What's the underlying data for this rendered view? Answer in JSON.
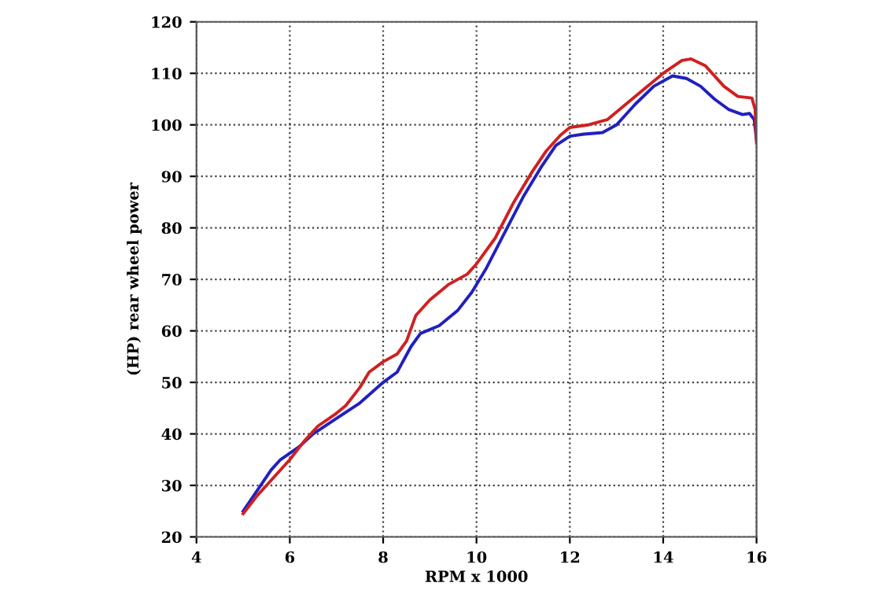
{
  "chart_data": {
    "type": "line",
    "xlabel": "RPM x 1000",
    "ylabel": "(HP) rear wheel power",
    "xlim": [
      4,
      16
    ],
    "ylim": [
      20,
      120
    ],
    "xticks": [
      4,
      6,
      8,
      10,
      12,
      14,
      16
    ],
    "yticks": [
      20,
      30,
      40,
      50,
      60,
      70,
      80,
      90,
      100,
      110,
      120
    ],
    "grid": true,
    "marker": "none",
    "line_style": "solid",
    "series": [
      {
        "color": "#2020c0",
        "x": [
          5.0,
          5.3,
          5.6,
          5.8,
          6.2,
          6.5,
          7.0,
          7.5,
          8.0,
          8.3,
          8.6,
          8.8,
          9.2,
          9.6,
          9.9,
          10.2,
          10.6,
          11.0,
          11.4,
          11.7,
          12.0,
          12.3,
          12.7,
          13.0,
          13.4,
          13.8,
          14.2,
          14.5,
          14.8,
          15.1,
          15.4,
          15.7,
          15.85,
          15.95,
          16.0
        ],
        "values": [
          25,
          29,
          33,
          35,
          37.5,
          40,
          43,
          46,
          50,
          52,
          57,
          59.5,
          61,
          64,
          67.5,
          72,
          79,
          86,
          92,
          96,
          97.8,
          98.2,
          98.5,
          100,
          104,
          107.5,
          109.5,
          109,
          107.5,
          105,
          103,
          102,
          102.2,
          101,
          97
        ]
      },
      {
        "color": "#d02020",
        "x": [
          5.0,
          5.3,
          5.6,
          6.0,
          6.3,
          6.6,
          7.0,
          7.2,
          7.5,
          7.7,
          8.0,
          8.3,
          8.5,
          8.7,
          9.0,
          9.4,
          9.8,
          10.0,
          10.4,
          10.8,
          11.2,
          11.5,
          11.8,
          12.0,
          12.4,
          12.8,
          13.2,
          13.6,
          14.0,
          14.4,
          14.6,
          14.9,
          15.3,
          15.6,
          15.9,
          15.97,
          16.0
        ],
        "values": [
          24.5,
          28,
          31,
          35,
          38.5,
          41.5,
          44,
          45.5,
          49,
          52,
          54,
          55.5,
          58,
          63,
          66,
          69,
          71,
          73,
          78,
          85,
          91,
          95,
          98,
          99.5,
          100,
          101,
          104,
          107,
          110,
          112.5,
          112.8,
          111.5,
          107.5,
          105.5,
          105.2,
          103,
          96.5
        ]
      }
    ]
  }
}
